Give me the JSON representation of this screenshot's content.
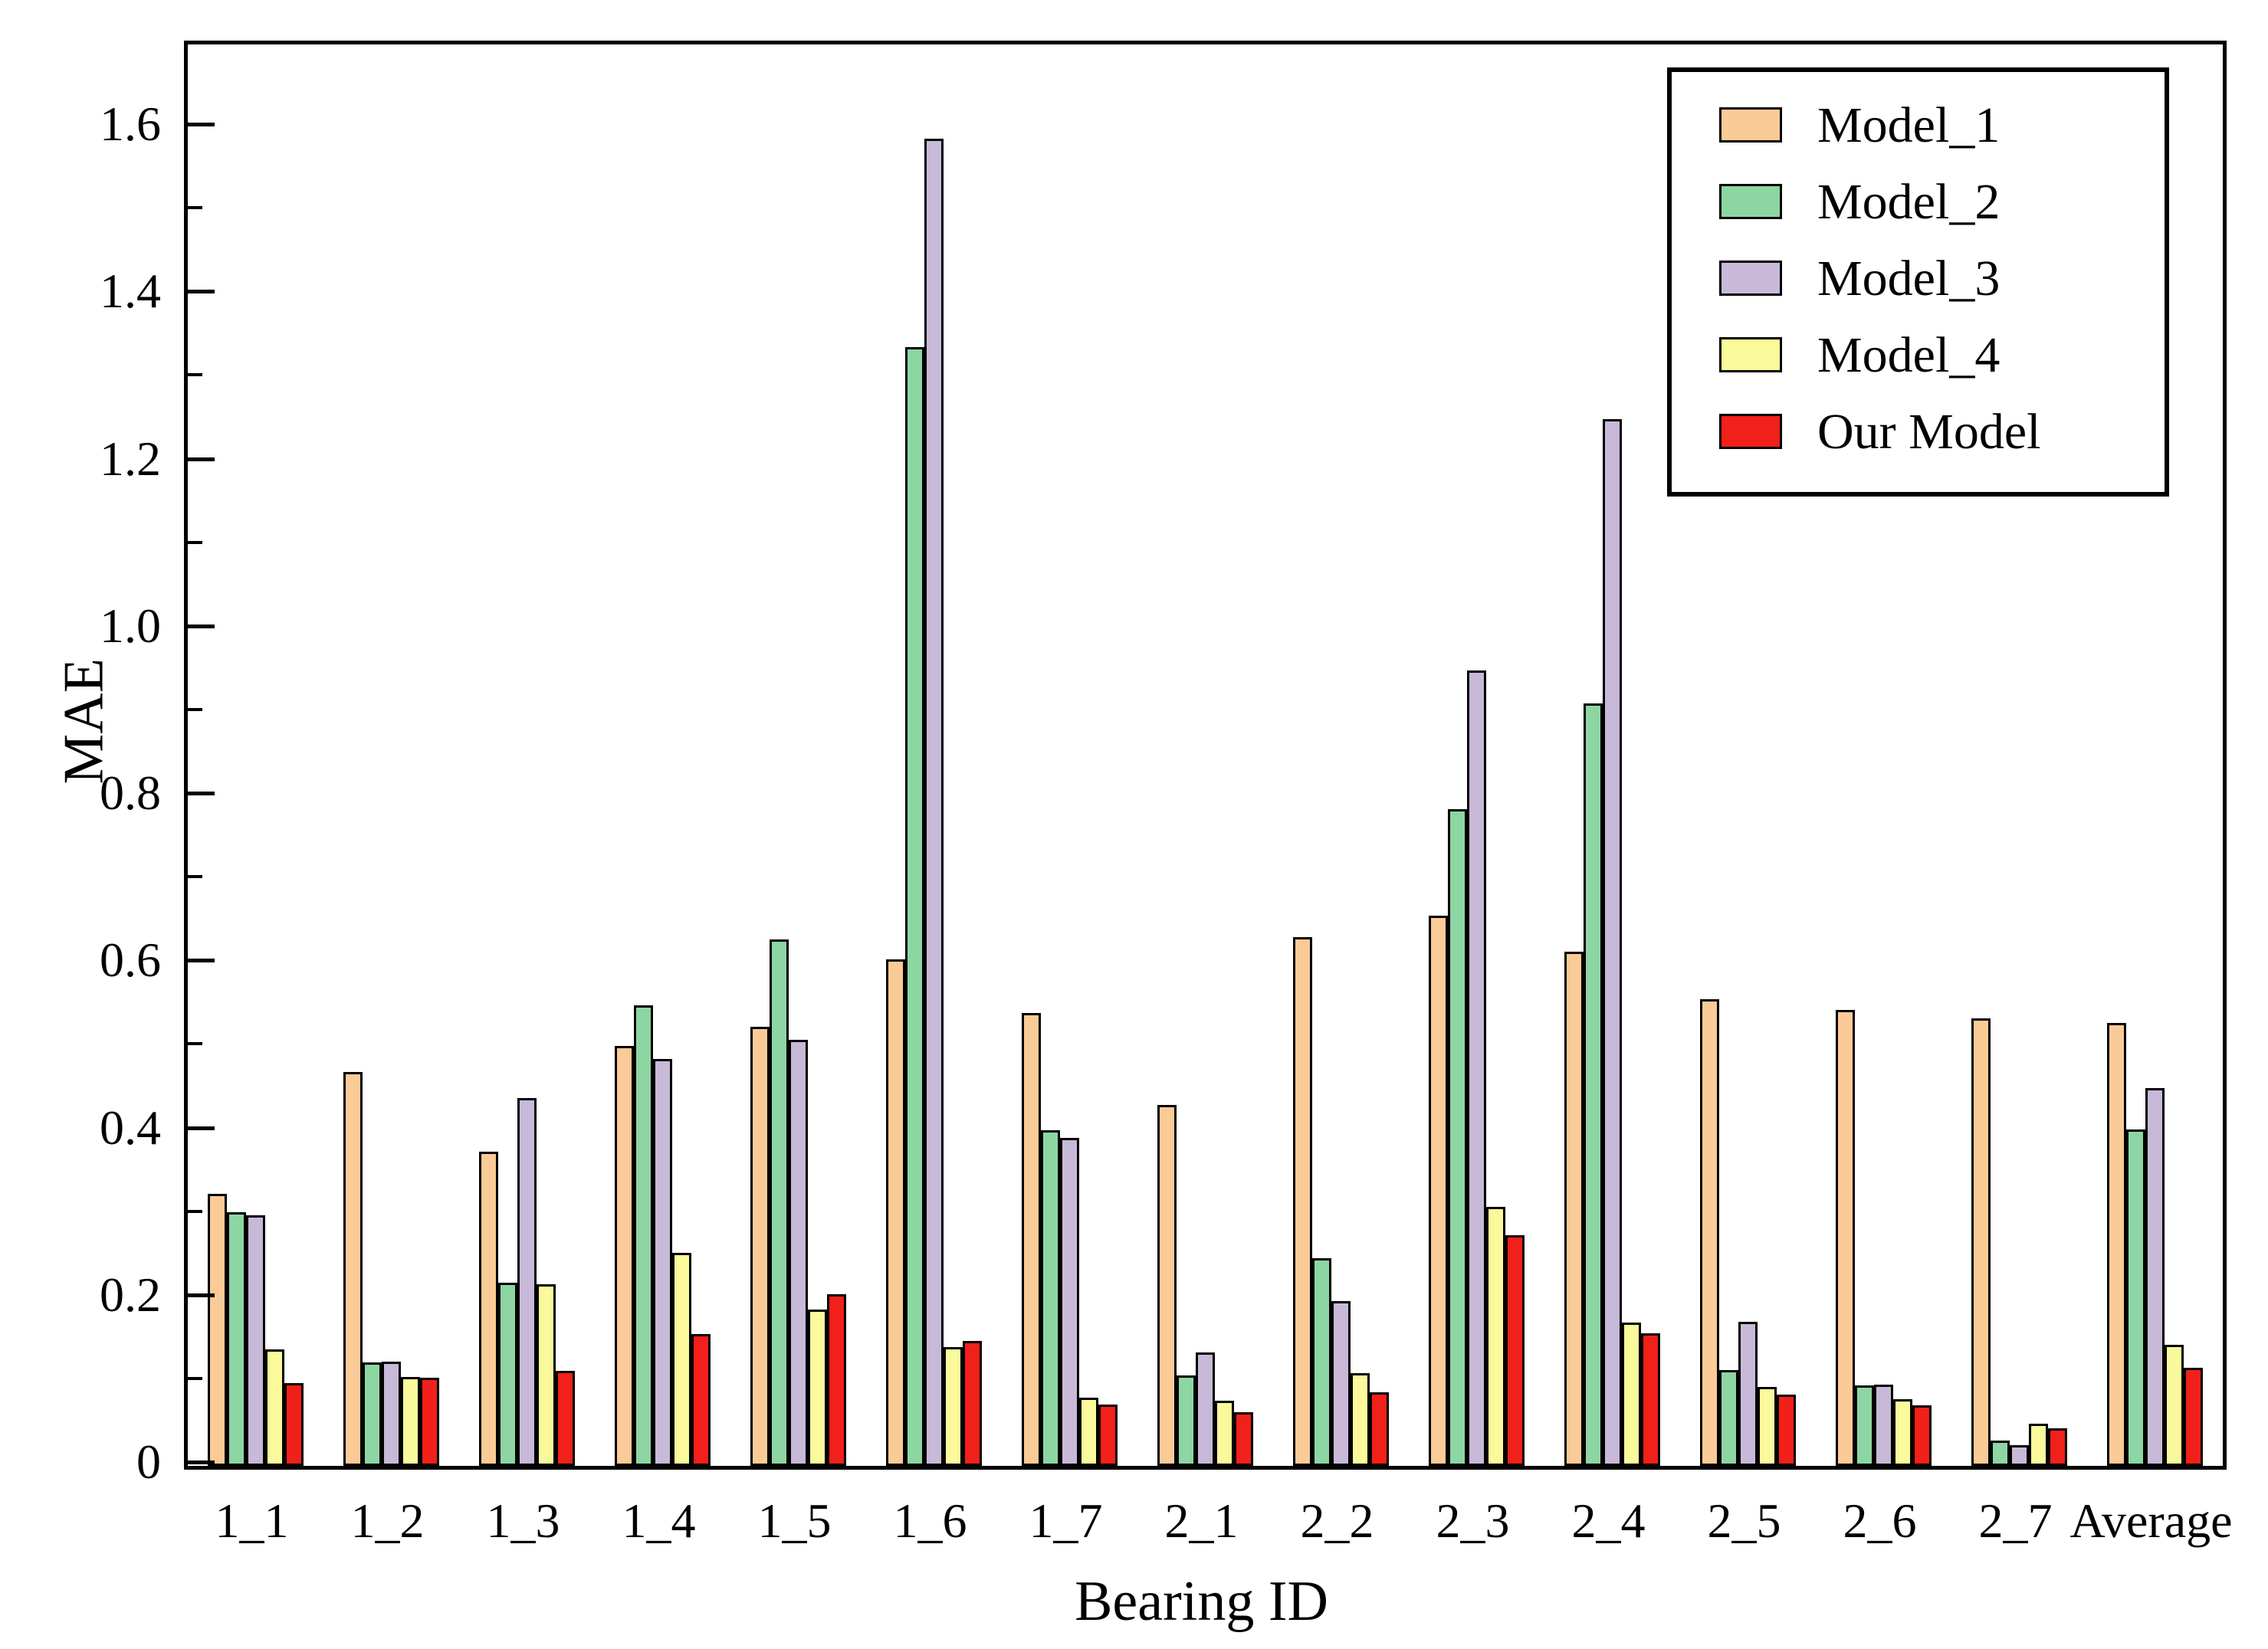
{
  "chart_data": {
    "type": "bar",
    "title": "",
    "xlabel": "Bearing ID",
    "ylabel": "MAE",
    "ylim": [
      0,
      1.7
    ],
    "yticks": [
      0,
      0.2,
      0.4,
      0.6,
      0.8,
      1.0,
      1.2,
      1.4,
      1.6
    ],
    "minor_tick_step": 0.1,
    "grid": false,
    "legend_position": "top-right",
    "categories": [
      "1_1",
      "1_2",
      "1_3",
      "1_4",
      "1_5",
      "1_6",
      "1_7",
      "2_1",
      "2_2",
      "2_3",
      "2_4",
      "2_5",
      "2_6",
      "2_7",
      "Average"
    ],
    "series": [
      {
        "name": "Model_1",
        "color": "#FBCB97",
        "values": [
          0.325,
          0.471,
          0.376,
          0.502,
          0.525,
          0.606,
          0.542,
          0.432,
          0.632,
          0.658,
          0.615,
          0.558,
          0.545,
          0.535,
          0.53
        ]
      },
      {
        "name": "Model_2",
        "color": "#8DD6A3",
        "values": [
          0.303,
          0.124,
          0.219,
          0.551,
          0.63,
          1.338,
          0.401,
          0.108,
          0.248,
          0.785,
          0.912,
          0.115,
          0.096,
          0.03,
          0.402
        ]
      },
      {
        "name": "Model_3",
        "color": "#C8B9D9",
        "values": [
          0.3,
          0.125,
          0.44,
          0.487,
          0.51,
          1.587,
          0.392,
          0.136,
          0.197,
          0.951,
          1.252,
          0.172,
          0.097,
          0.025,
          0.452
        ]
      },
      {
        "name": "Model_4",
        "color": "#FAFA9C",
        "values": [
          0.139,
          0.106,
          0.217,
          0.255,
          0.187,
          0.142,
          0.082,
          0.078,
          0.111,
          0.31,
          0.171,
          0.094,
          0.08,
          0.05,
          0.145
        ]
      },
      {
        "name": "Our Model",
        "color": "#F2201A",
        "values": [
          0.099,
          0.105,
          0.114,
          0.158,
          0.205,
          0.149,
          0.073,
          0.064,
          0.088,
          0.276,
          0.159,
          0.085,
          0.072,
          0.045,
          0.117
        ]
      }
    ]
  }
}
